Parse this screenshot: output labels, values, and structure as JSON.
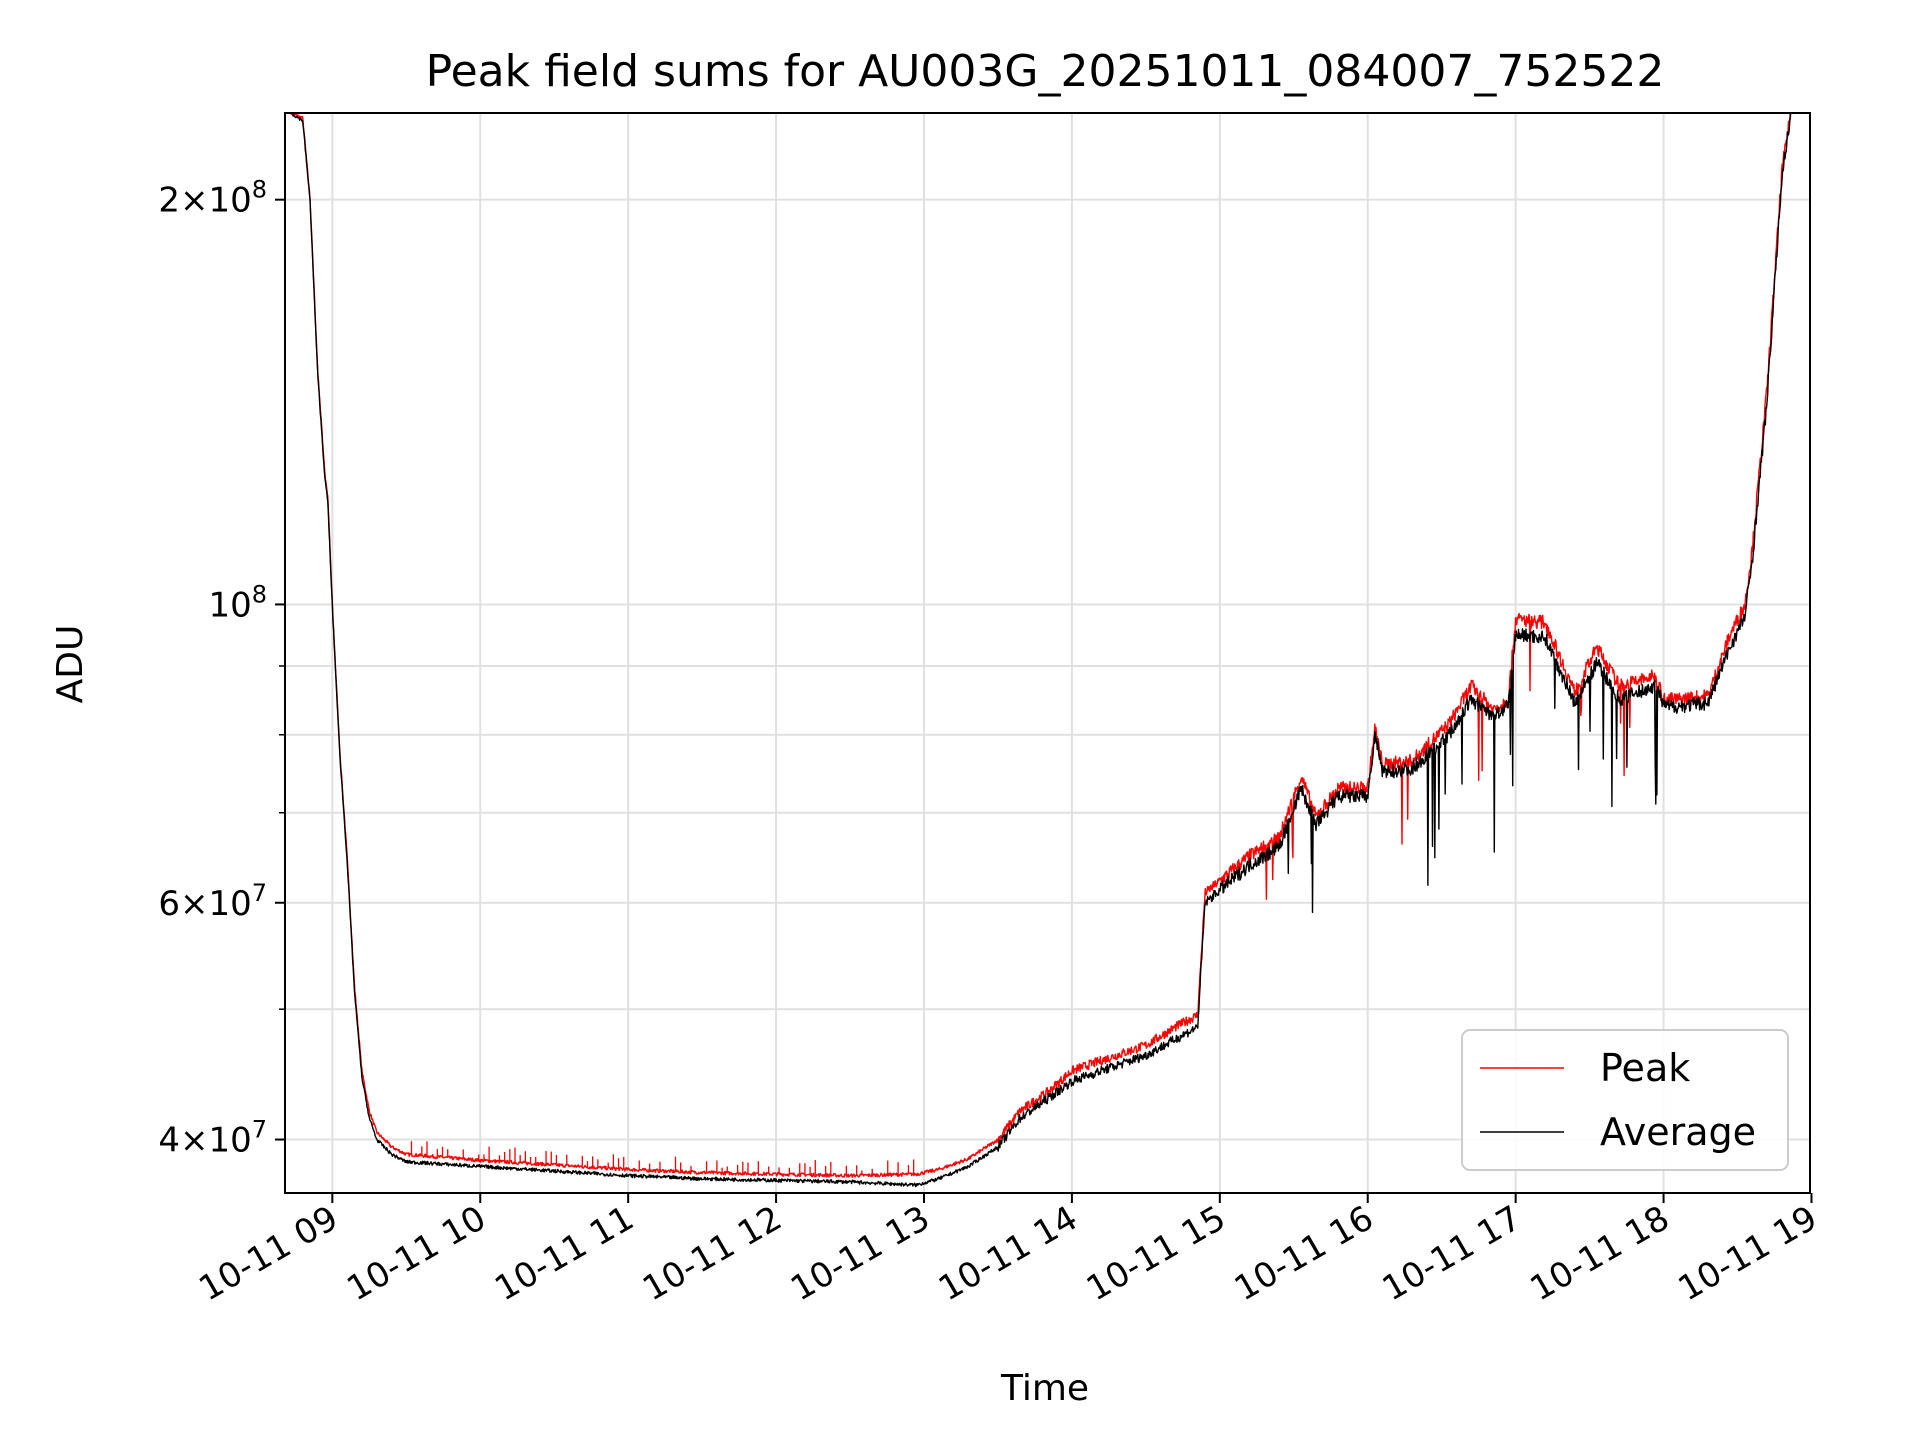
{
  "chart_data": {
    "type": "line",
    "title": "Peak field sums for AU003G_20251011_084007_752522",
    "xlabel": "Time",
    "ylabel": "ADU",
    "yscale": "log",
    "xlim": [
      8.68,
      18.99
    ],
    "ylim": [
      36500000,
      232000000
    ],
    "grid": true,
    "legend_position": "lower-right",
    "x_ticks": [
      {
        "value": 9,
        "label": "10-11 09"
      },
      {
        "value": 10,
        "label": "10-11 10"
      },
      {
        "value": 11,
        "label": "10-11 11"
      },
      {
        "value": 12,
        "label": "10-11 12"
      },
      {
        "value": 13,
        "label": "10-11 13"
      },
      {
        "value": 14,
        "label": "10-11 14"
      },
      {
        "value": 15,
        "label": "10-11 15"
      },
      {
        "value": 16,
        "label": "10-11 16"
      },
      {
        "value": 17,
        "label": "10-11 17"
      },
      {
        "value": 18,
        "label": "10-11 18"
      },
      {
        "value": 19,
        "label": "10-11 19"
      }
    ],
    "y_major_ticks": [
      {
        "value": 40000000,
        "mantissa": "4",
        "exponent": "7"
      },
      {
        "value": 60000000,
        "mantissa": "6",
        "exponent": "7"
      },
      {
        "value": 100000000,
        "mantissa": "",
        "exponent": "8"
      },
      {
        "value": 200000000,
        "mantissa": "2",
        "exponent": "8"
      }
    ],
    "y_minor_ticks": [
      50000000,
      70000000,
      80000000,
      90000000
    ],
    "series": [
      {
        "name": "Peak",
        "color": "#ff0000",
        "x": [
          8.72,
          8.8,
          8.85,
          8.9,
          8.95,
          8.97,
          9.0,
          9.05,
          9.1,
          9.15,
          9.2,
          9.25,
          9.3,
          9.4,
          9.5,
          10.0,
          10.5,
          11.0,
          11.5,
          12.0,
          12.5,
          12.95,
          13.1,
          13.3,
          13.5,
          13.65,
          13.85,
          14.0,
          14.2,
          14.5,
          14.7,
          14.85,
          14.9,
          15.2,
          15.4,
          15.55,
          15.65,
          15.8,
          16.0,
          16.05,
          16.1,
          16.3,
          16.55,
          16.7,
          16.85,
          16.95,
          17.0,
          17.2,
          17.4,
          17.55,
          17.7,
          17.95,
          18.0,
          18.1,
          18.3,
          18.45,
          18.55,
          18.6,
          18.7,
          18.75,
          18.8,
          18.86
        ],
        "values": [
          232000000,
          230000000,
          200000000,
          150000000,
          125000000,
          120000000,
          100000000,
          78000000,
          65000000,
          52000000,
          45000000,
          42000000,
          40500000,
          39500000,
          39000000,
          38600000,
          38300000,
          38000000,
          37800000,
          37700000,
          37600000,
          37700000,
          38000000,
          38700000,
          40000000,
          42000000,
          43500000,
          45000000,
          45800000,
          47000000,
          48500000,
          49500000,
          61000000,
          65000000,
          67000000,
          74500000,
          69500000,
          73000000,
          73000000,
          81000000,
          76000000,
          76500000,
          81500000,
          87000000,
          83500000,
          85000000,
          97500000,
          97000000,
          86000000,
          93000000,
          87000000,
          88500000,
          85000000,
          85000000,
          85500000,
          95000000,
          100000000,
          110000000,
          145000000,
          175000000,
          210000000,
          232000000
        ]
      },
      {
        "name": "Average",
        "color": "#000000",
        "x": [
          8.72,
          8.8,
          8.85,
          8.9,
          8.95,
          8.97,
          9.0,
          9.05,
          9.1,
          9.15,
          9.2,
          9.25,
          9.3,
          9.4,
          9.5,
          10.0,
          10.5,
          11.0,
          11.5,
          12.0,
          12.5,
          12.95,
          13.1,
          13.3,
          13.5,
          13.65,
          13.85,
          14.0,
          14.2,
          14.5,
          14.7,
          14.85,
          14.9,
          15.2,
          15.4,
          15.55,
          15.65,
          15.8,
          16.0,
          16.05,
          16.1,
          16.3,
          16.55,
          16.7,
          16.85,
          16.95,
          17.0,
          17.2,
          17.4,
          17.55,
          17.7,
          17.95,
          18.0,
          18.1,
          18.3,
          18.45,
          18.55,
          18.6,
          18.7,
          18.75,
          18.8,
          18.86
        ],
        "values": [
          232000000,
          229000000,
          199000000,
          149000000,
          124000000,
          119000000,
          99500000,
          77500000,
          64500000,
          51500000,
          44500000,
          41500000,
          40000000,
          39000000,
          38500000,
          38200000,
          37900000,
          37600000,
          37400000,
          37300000,
          37200000,
          37000000,
          37400000,
          38200000,
          39500000,
          41500000,
          43000000,
          44200000,
          45000000,
          46200000,
          47500000,
          48500000,
          60000000,
          64000000,
          66000000,
          73000000,
          68500000,
          72000000,
          72000000,
          80000000,
          75000000,
          75500000,
          80000000,
          85000000,
          82500000,
          84000000,
          95000000,
          94500000,
          84500000,
          90500000,
          85000000,
          87000000,
          84000000,
          84000000,
          84500000,
          93000000,
          98000000,
          108000000,
          142000000,
          172000000,
          208000000,
          232000000
        ]
      }
    ]
  }
}
